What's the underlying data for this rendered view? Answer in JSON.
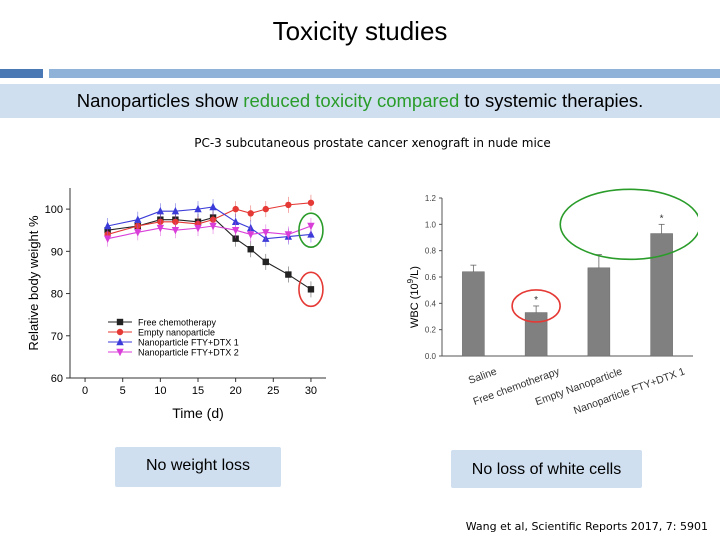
{
  "slide": {
    "title": "Toxicity studies",
    "banner": {
      "before": "Nanoparticles show ",
      "highlight": "reduced toxicity compared",
      "after": " to systemic therapies."
    },
    "subtitle": "PC-3 subcutaneous prostate cancer xenograft in nude mice",
    "box_left": "No weight loss",
    "box_right": "No loss of white cells",
    "citation": "Wang et al, Scientific Reports 2017, 7: 5901"
  },
  "colors": {
    "accent_green": "#2a9c2a",
    "banner_bg": "#cfdff0",
    "free": "#222222",
    "empty": "#e53935",
    "ftx1": "#3b3bd9",
    "ftx2": "#d93ed9",
    "bar": "#808080"
  },
  "chart_data": [
    {
      "type": "line",
      "xlabel": "Time (d)",
      "ylabel": "Relative body weight %",
      "xlim": [
        -2,
        32
      ],
      "ylim": [
        60,
        105
      ],
      "xticks": [
        0,
        5,
        10,
        15,
        20,
        25,
        30
      ],
      "yticks": [
        60,
        70,
        80,
        90,
        100
      ],
      "x": [
        3,
        7,
        10,
        12,
        15,
        17,
        20,
        22,
        24,
        27,
        30
      ],
      "series": [
        {
          "name": "Free chemotherapy",
          "marker": "square",
          "color_key": "free",
          "values": [
            95,
            96,
            97.5,
            97.5,
            97,
            98,
            93,
            90.5,
            87.5,
            84.5,
            81
          ]
        },
        {
          "name": "Empty nanoparticle",
          "marker": "circle",
          "color_key": "empty",
          "values": [
            94,
            96,
            97,
            97,
            96.5,
            97.5,
            100,
            99,
            100,
            101,
            101.5
          ]
        },
        {
          "name": "Nanoparticle FTY+DTX 1",
          "marker": "triangle-up",
          "color_key": "ftx1",
          "values": [
            96,
            97.5,
            99.5,
            99.5,
            100,
            100.5,
            97,
            95.5,
            93,
            93.5,
            94
          ]
        },
        {
          "name": "Nanoparticle FTY+DTX 2",
          "marker": "triangle-down",
          "color_key": "ftx2",
          "values": [
            93,
            94.5,
            95.5,
            95,
            95.5,
            96,
            95,
            94,
            94.5,
            94,
            96
          ]
        }
      ],
      "legend_position": "bottom-left",
      "annotations": [
        {
          "shape": "circle",
          "color_key": "accent_green",
          "x": 30,
          "y": 95
        },
        {
          "shape": "circle",
          "color_key": "empty",
          "x": 30,
          "y": 81
        }
      ]
    },
    {
      "type": "bar",
      "ylabel_main": "WBC (10",
      "ylabel_sup": "9",
      "ylabel_end": "/L)",
      "ylim": [
        0,
        1.2
      ],
      "yticks": [
        0.0,
        0.2,
        0.4,
        0.6,
        0.8,
        1.0,
        1.2
      ],
      "categories": [
        "Saline",
        "Free chemotherapy",
        "Empty Nanoparticle",
        "Nanoparticle FTY+DTX 1"
      ],
      "values": [
        0.64,
        0.33,
        0.67,
        0.93
      ],
      "errors": [
        0.05,
        0.05,
        0.1,
        0.07
      ],
      "significance": [
        "",
        "*",
        "",
        "*"
      ],
      "annotations": [
        {
          "shape": "ellipse",
          "color_key": "empty",
          "category": "Free chemotherapy"
        },
        {
          "shape": "ellipse",
          "color_key": "accent_green",
          "categories": [
            "Empty Nanoparticle",
            "Nanoparticle FTY+DTX 1"
          ]
        }
      ]
    }
  ]
}
